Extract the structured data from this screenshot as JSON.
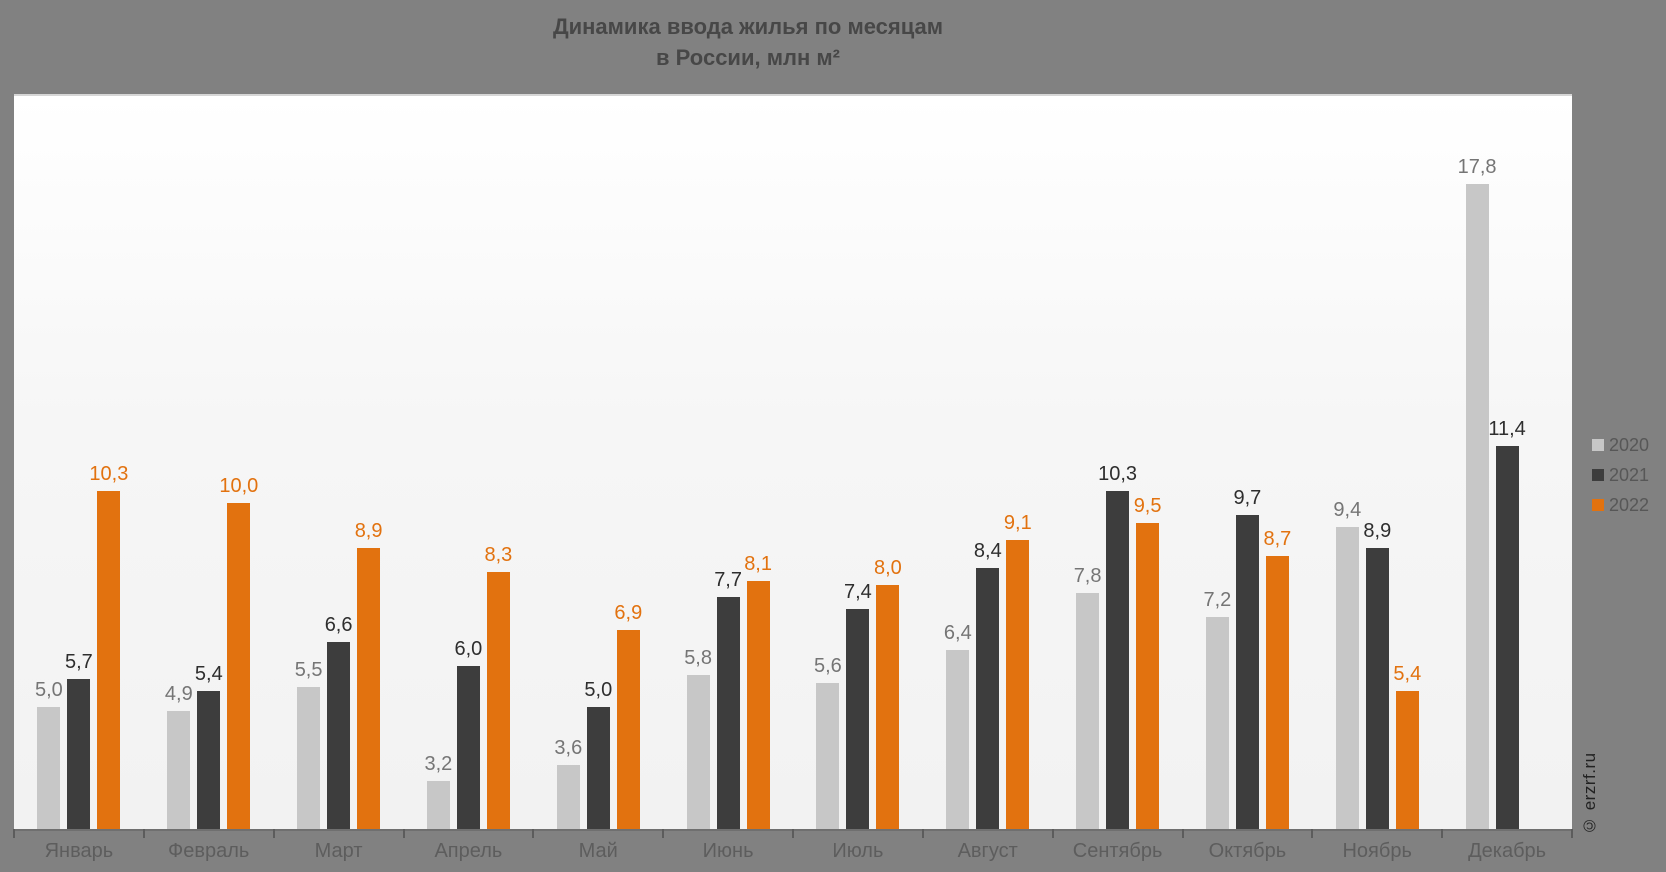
{
  "title": {
    "line1": "Динамика ввода жилья по месяцам",
    "line2": "в России, млн м²"
  },
  "watermark": "© erzrf.ru",
  "colors": {
    "background": "#818181",
    "plot_background_top": "#ffffff",
    "plot_background_bottom": "#f2f2f2",
    "series_2020": "#c7c7c7",
    "series_2021": "#3d3d3d",
    "series_2022": "#e2720f",
    "title_text": "#474747",
    "axis_text": "#5d5d5d"
  },
  "legend": [
    {
      "label": "2020",
      "color": "#c7c7c7"
    },
    {
      "label": "2021",
      "color": "#3d3d3d"
    },
    {
      "label": "2022",
      "color": "#e2720f"
    }
  ],
  "chart_data": {
    "type": "bar",
    "title": "Динамика ввода жилья по месяцам в России, млн м²",
    "categories": [
      "Январь",
      "Февраль",
      "Март",
      "Апрель",
      "Май",
      "Июнь",
      "Июль",
      "Август",
      "Сентябрь",
      "Октябрь",
      "Ноябрь",
      "Декабрь"
    ],
    "series": [
      {
        "name": "2020",
        "color": "#c7c7c7",
        "label_color": "#757575",
        "values": [
          5.0,
          4.9,
          5.5,
          3.2,
          3.6,
          5.8,
          5.6,
          6.4,
          7.8,
          7.2,
          9.4,
          17.8
        ]
      },
      {
        "name": "2021",
        "color": "#3d3d3d",
        "label_color": "#2e2e2e",
        "values": [
          5.7,
          5.4,
          6.6,
          6.0,
          5.0,
          7.7,
          7.4,
          8.4,
          10.3,
          9.7,
          8.9,
          11.4
        ]
      },
      {
        "name": "2022",
        "color": "#e2720f",
        "label_color": "#e2720f",
        "values": [
          10.3,
          10.0,
          8.9,
          8.3,
          6.9,
          8.1,
          8.0,
          9.1,
          9.5,
          8.7,
          5.4,
          null
        ]
      }
    ],
    "value_format": "comma-decimal-1",
    "xlabel": "",
    "ylabel": "",
    "ylim": [
      2,
      20
    ],
    "grid": false,
    "value_labels": true,
    "legend_position": "right"
  }
}
